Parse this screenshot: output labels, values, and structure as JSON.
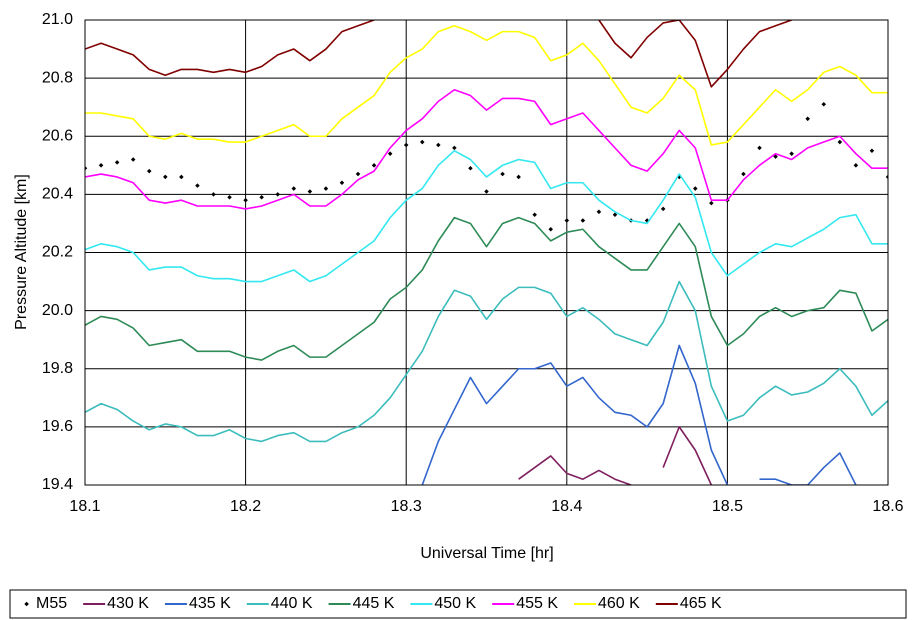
{
  "chart_data": {
    "type": "line",
    "xlabel": "Universal Time [hr]",
    "ylabel": "Pressure Altitude [km]",
    "xlim": [
      18.1,
      18.6
    ],
    "xticks": [
      18.1,
      18.2,
      18.3,
      18.4,
      18.5,
      18.6
    ],
    "ylim": [
      19.4,
      21.0
    ],
    "yticks": [
      {
        "value": 19.4,
        "label": "19.4"
      },
      {
        "value": 19.6,
        "label": "19.6"
      },
      {
        "value": 19.8,
        "label": "19.8"
      },
      {
        "value": 20.0,
        "label": "20.0"
      },
      {
        "value": 20.2,
        "label": "20.2"
      },
      {
        "value": 20.4,
        "label": "20.4"
      },
      {
        "value": 20.6,
        "label": "20.6"
      },
      {
        "value": 20.8,
        "label": "20.8"
      },
      {
        "value": 21.0,
        "label": "21.0"
      }
    ],
    "grid": true,
    "legend": "bottom",
    "x": [
      18.1,
      18.11,
      18.12,
      18.13,
      18.14,
      18.15,
      18.16,
      18.17,
      18.18,
      18.19,
      18.2,
      18.21,
      18.22,
      18.23,
      18.24,
      18.25,
      18.26,
      18.27,
      18.28,
      18.29,
      18.3,
      18.31,
      18.32,
      18.33,
      18.34,
      18.35,
      18.36,
      18.37,
      18.38,
      18.39,
      18.4,
      18.41,
      18.42,
      18.43,
      18.44,
      18.45,
      18.46,
      18.47,
      18.48,
      18.49,
      18.5,
      18.51,
      18.52,
      18.53,
      18.54,
      18.55,
      18.56,
      18.57,
      18.58,
      18.59,
      18.6
    ],
    "series": [
      {
        "name": "M55",
        "color": "#000000",
        "mode": "markers",
        "values": [
          20.49,
          20.5,
          20.51,
          20.52,
          20.48,
          20.46,
          20.46,
          20.43,
          20.4,
          20.39,
          20.38,
          20.39,
          20.4,
          20.42,
          20.41,
          20.42,
          20.44,
          20.47,
          20.5,
          20.54,
          20.57,
          20.58,
          20.57,
          20.56,
          20.49,
          20.41,
          20.47,
          20.46,
          20.33,
          20.28,
          20.31,
          20.31,
          20.34,
          20.33,
          20.31,
          20.31,
          20.35,
          20.46,
          20.42,
          20.37,
          20.38,
          20.47,
          20.56,
          20.53,
          20.54,
          20.66,
          20.71,
          20.58,
          20.5,
          20.55,
          20.46
        ]
      },
      {
        "name": "430 K",
        "color": "#7f1f5f",
        "mode": "lines",
        "values": [
          null,
          null,
          null,
          null,
          null,
          null,
          null,
          null,
          null,
          null,
          null,
          null,
          null,
          null,
          null,
          null,
          null,
          null,
          null,
          null,
          null,
          null,
          null,
          null,
          null,
          null,
          null,
          19.42,
          19.46,
          19.5,
          19.44,
          19.42,
          19.45,
          19.42,
          19.4,
          null,
          19.46,
          19.6,
          19.52,
          19.4,
          null,
          null,
          null,
          null,
          null,
          null,
          null,
          null,
          null,
          null,
          null
        ]
      },
      {
        "name": "435 K",
        "color": "#3366cc",
        "mode": "lines",
        "values": [
          null,
          null,
          null,
          null,
          null,
          null,
          null,
          null,
          null,
          null,
          null,
          null,
          null,
          null,
          null,
          null,
          null,
          null,
          null,
          null,
          null,
          19.4,
          19.55,
          19.66,
          19.77,
          19.68,
          19.74,
          19.8,
          19.8,
          19.82,
          19.74,
          19.77,
          19.7,
          19.65,
          19.64,
          19.6,
          19.68,
          19.88,
          19.75,
          19.52,
          19.4,
          null,
          19.42,
          19.42,
          19.4,
          19.4,
          19.46,
          19.51,
          19.4,
          null,
          null
        ]
      },
      {
        "name": "440 K",
        "color": "#3cbcbc",
        "mode": "lines",
        "values": [
          19.65,
          19.68,
          19.66,
          19.62,
          19.59,
          19.61,
          19.6,
          19.57,
          19.57,
          19.59,
          19.56,
          19.55,
          19.57,
          19.58,
          19.55,
          19.55,
          19.58,
          19.6,
          19.64,
          19.7,
          19.78,
          19.86,
          19.98,
          20.07,
          20.05,
          19.97,
          20.04,
          20.08,
          20.08,
          20.06,
          19.98,
          20.01,
          19.97,
          19.92,
          19.9,
          19.88,
          19.96,
          20.1,
          20.0,
          19.74,
          19.62,
          19.64,
          19.7,
          19.74,
          19.71,
          19.72,
          19.75,
          19.8,
          19.74,
          19.64,
          19.69
        ]
      },
      {
        "name": "445 K",
        "color": "#2e8b57",
        "mode": "lines",
        "values": [
          19.95,
          19.98,
          19.97,
          19.94,
          19.88,
          19.89,
          19.9,
          19.86,
          19.86,
          19.86,
          19.84,
          19.83,
          19.86,
          19.88,
          19.84,
          19.84,
          19.88,
          19.92,
          19.96,
          20.04,
          20.08,
          20.14,
          20.24,
          20.32,
          20.3,
          20.22,
          20.3,
          20.32,
          20.3,
          20.24,
          20.27,
          20.28,
          20.22,
          20.18,
          20.14,
          20.14,
          20.22,
          20.3,
          20.22,
          19.98,
          19.88,
          19.92,
          19.98,
          20.01,
          19.98,
          20.0,
          20.01,
          20.07,
          20.06,
          19.93,
          19.97
        ]
      },
      {
        "name": "450 K",
        "color": "#33e8f0",
        "mode": "lines",
        "values": [
          20.21,
          20.23,
          20.22,
          20.2,
          20.14,
          20.15,
          20.15,
          20.12,
          20.11,
          20.11,
          20.1,
          20.1,
          20.12,
          20.14,
          20.1,
          20.12,
          20.16,
          20.2,
          20.24,
          20.32,
          20.38,
          20.42,
          20.5,
          20.55,
          20.52,
          20.46,
          20.5,
          20.52,
          20.51,
          20.42,
          20.44,
          20.44,
          20.38,
          20.34,
          20.31,
          20.3,
          20.38,
          20.47,
          20.39,
          20.2,
          20.12,
          20.16,
          20.2,
          20.23,
          20.22,
          20.25,
          20.28,
          20.32,
          20.33,
          20.23,
          20.23
        ]
      },
      {
        "name": "455 K",
        "color": "#ff00ff",
        "mode": "lines",
        "values": [
          20.46,
          20.47,
          20.46,
          20.44,
          20.38,
          20.37,
          20.38,
          20.36,
          20.36,
          20.36,
          20.35,
          20.36,
          20.38,
          20.4,
          20.36,
          20.36,
          20.4,
          20.45,
          20.48,
          20.56,
          20.62,
          20.66,
          20.72,
          20.76,
          20.74,
          20.69,
          20.73,
          20.73,
          20.72,
          20.64,
          20.66,
          20.68,
          20.62,
          20.56,
          20.5,
          20.48,
          20.54,
          20.62,
          20.56,
          20.38,
          20.38,
          20.45,
          20.5,
          20.54,
          20.52,
          20.56,
          20.58,
          20.6,
          20.54,
          20.49,
          20.49
        ]
      },
      {
        "name": "460 K",
        "color": "#ffff00",
        "mode": "lines",
        "values": [
          20.68,
          20.68,
          20.67,
          20.66,
          20.6,
          20.59,
          20.61,
          20.59,
          20.59,
          20.58,
          20.58,
          20.6,
          20.62,
          20.64,
          20.6,
          20.6,
          20.66,
          20.7,
          20.74,
          20.82,
          20.87,
          20.9,
          20.96,
          20.98,
          20.96,
          20.93,
          20.96,
          20.96,
          20.94,
          20.86,
          20.88,
          20.92,
          20.86,
          20.78,
          20.7,
          20.68,
          20.73,
          20.81,
          20.76,
          20.57,
          20.58,
          20.64,
          20.7,
          20.76,
          20.72,
          20.76,
          20.82,
          20.84,
          20.81,
          20.75,
          20.75
        ]
      },
      {
        "name": "465 K",
        "color": "#800000",
        "mode": "lines",
        "values": [
          20.9,
          20.92,
          20.9,
          20.88,
          20.83,
          20.81,
          20.83,
          20.83,
          20.82,
          20.83,
          20.82,
          20.84,
          20.88,
          20.9,
          20.86,
          20.9,
          20.96,
          20.98,
          21.0,
          null,
          null,
          null,
          null,
          null,
          null,
          null,
          null,
          null,
          null,
          null,
          null,
          null,
          21.0,
          20.92,
          20.87,
          20.94,
          20.99,
          21.0,
          20.93,
          20.77,
          20.83,
          20.9,
          20.96,
          20.98,
          21.0,
          null,
          null,
          null,
          null,
          null,
          null
        ]
      }
    ]
  }
}
